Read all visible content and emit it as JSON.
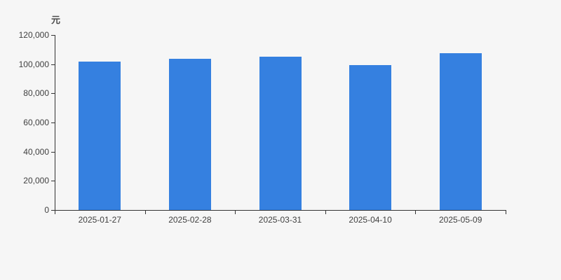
{
  "chart_data": {
    "type": "bar",
    "title": "",
    "unit_label": "元",
    "categories": [
      "2025-01-27",
      "2025-02-28",
      "2025-03-31",
      "2025-04-10",
      "2025-05-09"
    ],
    "values": [
      101600,
      103600,
      105200,
      99500,
      107300
    ],
    "xlabel": "",
    "ylabel": "元",
    "ylim": [
      0,
      120000
    ],
    "y_ticks": [
      0,
      20000,
      40000,
      60000,
      80000,
      100000,
      120000
    ],
    "y_tick_labels": [
      "0",
      "20,000",
      "40,000",
      "60,000",
      "80,000",
      "100,000",
      "120,000"
    ],
    "grid": false,
    "legend_position": "none",
    "colors": {
      "bar": "#3580e0",
      "axis": "#333333",
      "tick_label": "#404040",
      "unit_label": "#4d4d4d",
      "background": "#f6f6f6"
    }
  }
}
